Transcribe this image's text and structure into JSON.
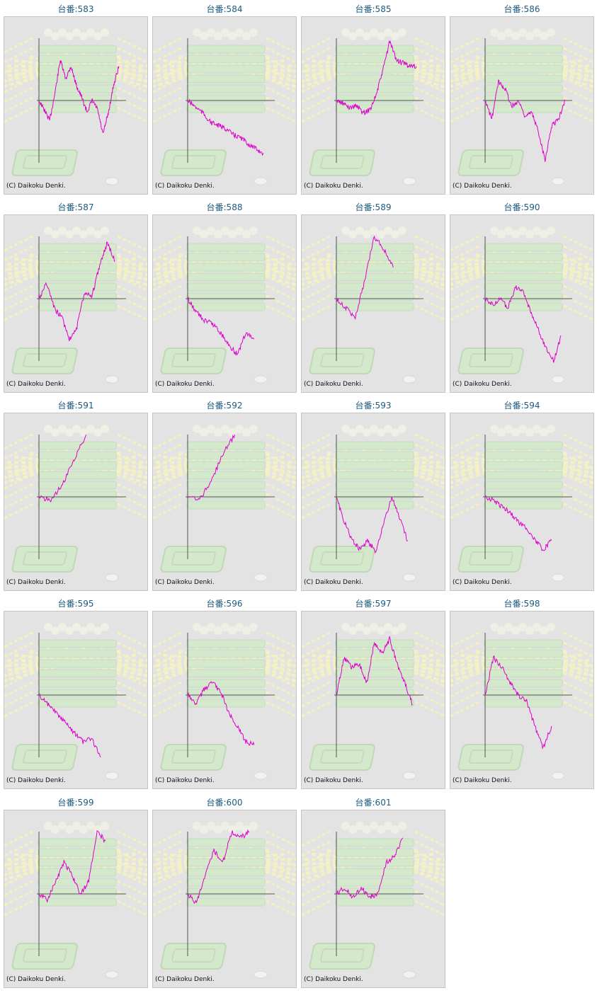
{
  "page": {
    "title_prefix": "台番:",
    "copyright": "(C) Daikoku Denki."
  },
  "colors": {
    "line": "#dd00cc",
    "axis": "#555555",
    "panel_bg": "#e3e3e3",
    "title": "#1c5a80"
  },
  "chart_data": [
    {
      "type": "line",
      "title": "台番:583",
      "ylim": [
        -1,
        1
      ],
      "values": [
        0.0,
        -0.15,
        -0.32,
        0.12,
        0.65,
        0.35,
        0.55,
        0.25,
        0.05,
        -0.18,
        0.0,
        -0.15,
        -0.55,
        -0.2,
        0.25,
        0.55
      ]
    },
    {
      "type": "line",
      "title": "台番:584",
      "ylim": [
        -1,
        1
      ],
      "values": [
        0.0,
        -0.1,
        -0.2,
        -0.35,
        -0.4,
        -0.45,
        -0.55,
        -0.6,
        -0.7,
        -0.78,
        -0.85
      ]
    },
    {
      "type": "line",
      "title": "台番:585",
      "ylim": [
        -1,
        1
      ],
      "values": [
        0.0,
        -0.05,
        -0.12,
        -0.08,
        -0.2,
        -0.15,
        0.1,
        0.5,
        0.95,
        0.65,
        0.6,
        0.55,
        0.55
      ]
    },
    {
      "type": "line",
      "title": "台番:586",
      "ylim": [
        -1,
        1
      ],
      "values": [
        0.0,
        -0.3,
        0.3,
        0.2,
        -0.1,
        0.0,
        -0.25,
        -0.2,
        -0.5,
        -0.95,
        -0.4,
        -0.3,
        0.0
      ]
    },
    {
      "type": "line",
      "title": "台番:587",
      "ylim": [
        -1,
        1
      ],
      "values": [
        0.0,
        0.25,
        -0.15,
        -0.3,
        -0.65,
        -0.45,
        0.1,
        0.05,
        0.55,
        0.9,
        0.6
      ]
    },
    {
      "type": "line",
      "title": "台番:588",
      "ylim": [
        -1,
        1
      ],
      "values": [
        0.0,
        -0.2,
        -0.35,
        -0.4,
        -0.55,
        -0.75,
        -0.9,
        -0.55,
        -0.65
      ]
    },
    {
      "type": "line",
      "title": "台番:589",
      "ylim": [
        -1,
        1
      ],
      "values": [
        0.0,
        -0.15,
        -0.3,
        0.3,
        1.0,
        0.8,
        0.5
      ]
    },
    {
      "type": "line",
      "title": "台番:590",
      "ylim": [
        -1,
        1
      ],
      "values": [
        0.0,
        -0.1,
        0.0,
        -0.15,
        0.2,
        0.1,
        -0.2,
        -0.5,
        -0.8,
        -1.0,
        -0.6
      ]
    },
    {
      "type": "line",
      "title": "台番:591",
      "ylim": [
        -1,
        1
      ],
      "values": [
        0.0,
        -0.05,
        0.2,
        0.6,
        1.0
      ]
    },
    {
      "type": "line",
      "title": "台番:592",
      "ylim": [
        -1,
        1
      ],
      "values": [
        0.0,
        -0.05,
        0.25,
        0.7,
        1.0
      ]
    },
    {
      "type": "line",
      "title": "台番:593",
      "ylim": [
        -1,
        1
      ],
      "values": [
        0.0,
        -0.4,
        -0.7,
        -0.85,
        -0.7,
        -0.9,
        -0.4,
        0.0,
        -0.35,
        -0.7
      ]
    },
    {
      "type": "line",
      "title": "台番:594",
      "ylim": [
        -1,
        1
      ],
      "values": [
        0.0,
        -0.05,
        -0.15,
        -0.25,
        -0.4,
        -0.5,
        -0.7,
        -0.85,
        -0.7
      ]
    },
    {
      "type": "line",
      "title": "台番:595",
      "ylim": [
        -1,
        1
      ],
      "values": [
        0.0,
        -0.15,
        -0.3,
        -0.45,
        -0.6,
        -0.75,
        -0.7,
        -1.0
      ]
    },
    {
      "type": "line",
      "title": "台番:596",
      "ylim": [
        -1,
        1
      ],
      "values": [
        0.0,
        -0.15,
        0.1,
        0.2,
        0.05,
        -0.3,
        -0.5,
        -0.75,
        -0.8
      ]
    },
    {
      "type": "line",
      "title": "台番:597",
      "ylim": [
        -1,
        1
      ],
      "values": [
        0.0,
        0.6,
        0.45,
        0.5,
        0.2,
        0.85,
        0.65,
        0.9,
        0.5,
        0.2,
        -0.15
      ]
    },
    {
      "type": "line",
      "title": "台番:598",
      "ylim": [
        -1,
        1
      ],
      "values": [
        0.0,
        0.6,
        0.45,
        0.2,
        0.0,
        -0.1,
        -0.5,
        -0.85,
        -0.5
      ]
    },
    {
      "type": "line",
      "title": "台番:599",
      "ylim": [
        -1,
        1
      ],
      "values": [
        0.0,
        -0.1,
        0.2,
        0.5,
        0.3,
        0.0,
        0.2,
        1.0,
        0.85
      ]
    },
    {
      "type": "line",
      "title": "台番:600",
      "ylim": [
        -1,
        1
      ],
      "values": [
        0.0,
        -0.15,
        0.3,
        0.7,
        0.5,
        1.0,
        0.9,
        1.0
      ]
    },
    {
      "type": "line",
      "title": "台番:601",
      "ylim": [
        -1,
        1
      ],
      "values": [
        0.0,
        0.1,
        -0.05,
        0.1,
        -0.05,
        0.0,
        0.5,
        0.6,
        0.9
      ]
    }
  ]
}
